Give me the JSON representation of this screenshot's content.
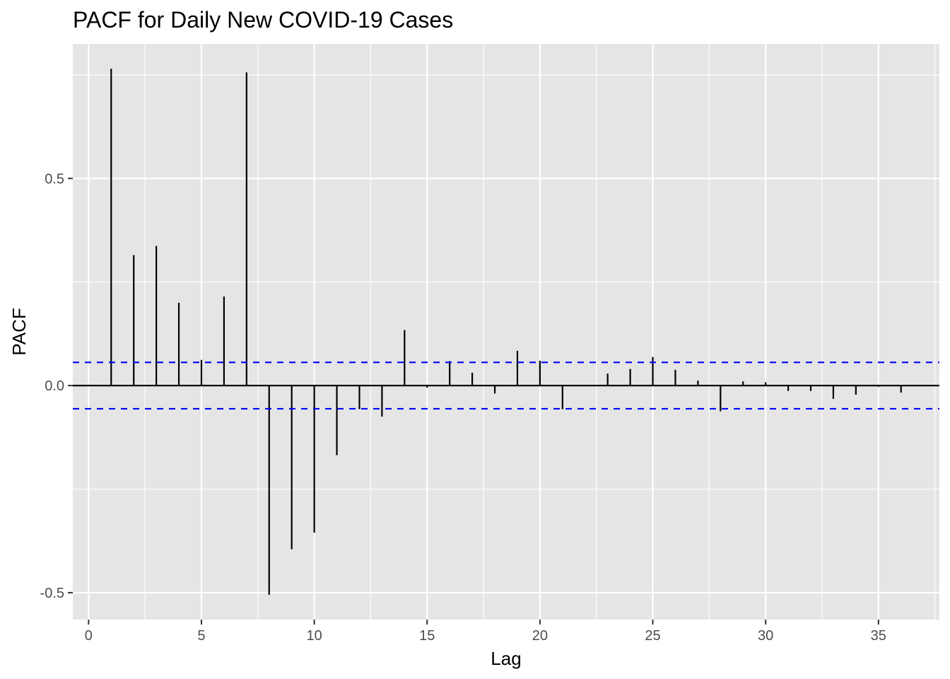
{
  "chart_data": {
    "type": "bar",
    "title": "PACF for Daily New COVID-19 Cases",
    "xlabel": "Lag",
    "ylabel": "PACF",
    "xlim": [
      -0.7,
      37.7
    ],
    "ylim": [
      -0.565,
      0.825
    ],
    "x_ticks": [
      0,
      5,
      10,
      15,
      20,
      25,
      30,
      35
    ],
    "x_tick_labels": [
      "0",
      "5",
      "10",
      "15",
      "20",
      "25",
      "30",
      "35"
    ],
    "y_ticks": [
      -0.5,
      0.0,
      0.5
    ],
    "y_tick_labels": [
      "-0.5",
      "0.0",
      "0.5"
    ],
    "confidence_bound": 0.056,
    "lags": [
      1,
      2,
      3,
      4,
      5,
      6,
      7,
      8,
      9,
      10,
      11,
      12,
      13,
      14,
      15,
      16,
      17,
      18,
      19,
      20,
      21,
      22,
      23,
      24,
      25,
      26,
      27,
      28,
      29,
      30,
      31,
      32,
      33,
      34,
      35,
      36
    ],
    "values": [
      0.765,
      0.315,
      0.337,
      0.2,
      0.062,
      0.215,
      0.756,
      -0.505,
      -0.395,
      -0.355,
      -0.168,
      -0.057,
      -0.075,
      0.134,
      -0.005,
      0.059,
      0.031,
      -0.019,
      0.084,
      0.06,
      -0.057,
      0.0,
      0.029,
      0.04,
      0.069,
      0.038,
      0.012,
      -0.062,
      0.01,
      0.008,
      -0.013,
      -0.013,
      -0.032,
      -0.022,
      -0.003,
      -0.017
    ],
    "grid": true,
    "background": "#e5e5e5",
    "grid_color": "#ffffff",
    "bar_color": "#000000",
    "bound_color": "#0000ff"
  }
}
